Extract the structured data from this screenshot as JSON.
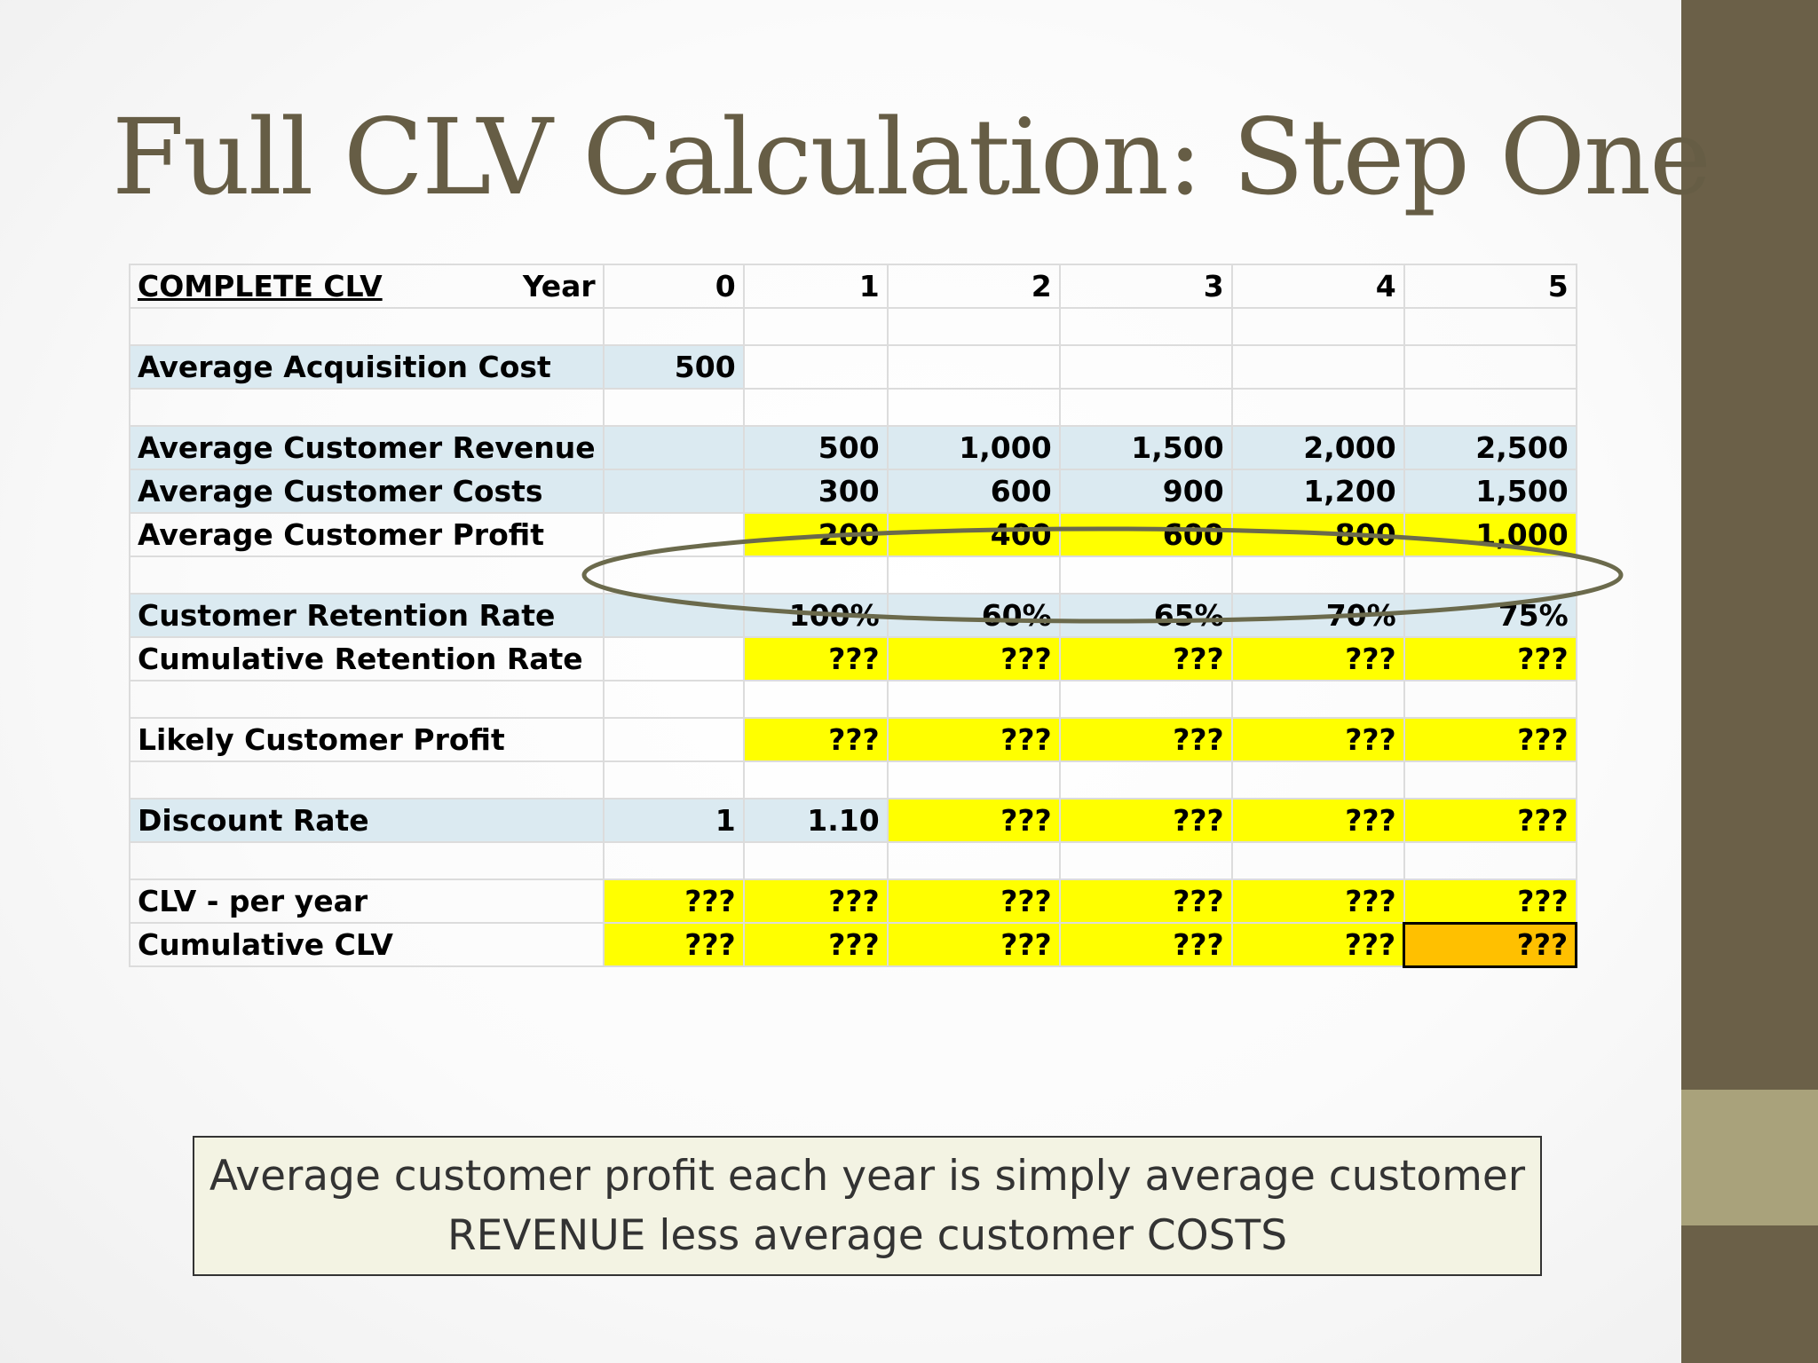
{
  "title": "Full CLV Calculation: Step One",
  "sheet": {
    "header_label": "COMPLETE CLV",
    "year_label": "Year",
    "years": [
      "0",
      "1",
      "2",
      "3",
      "4",
      "5"
    ],
    "rows": {
      "acq": {
        "label": "Average Acquisition Cost",
        "values": [
          "500",
          "",
          "",
          "",
          "",
          ""
        ]
      },
      "rev": {
        "label": "Average Customer Revenue",
        "values": [
          "",
          "500",
          "1,000",
          "1,500",
          "2,000",
          "2,500"
        ]
      },
      "cost": {
        "label": "Average Customer Costs",
        "values": [
          "",
          "300",
          "600",
          "900",
          "1,200",
          "1,500"
        ]
      },
      "profit": {
        "label": "Average Customer Profit",
        "values": [
          "",
          "200",
          "400",
          "600",
          "800",
          "1,000"
        ]
      },
      "ret": {
        "label": "Customer Retention Rate",
        "values": [
          "",
          "100%",
          "60%",
          "65%",
          "70%",
          "75%"
        ]
      },
      "cumret": {
        "label": "Cumulative Retention Rate",
        "values": [
          "",
          "???",
          "???",
          "???",
          "???",
          "???"
        ]
      },
      "likely": {
        "label": "Likely Customer Profit",
        "values": [
          "",
          "???",
          "???",
          "???",
          "???",
          "???"
        ]
      },
      "disc": {
        "label": "Discount Rate",
        "values": [
          "1",
          "1.10",
          "???",
          "???",
          "???",
          "???"
        ]
      },
      "clvyear": {
        "label": "CLV - per year",
        "values": [
          "???",
          "???",
          "???",
          "???",
          "???",
          "???"
        ]
      },
      "cumclv": {
        "label": "Cumulative CLV",
        "values": [
          "???",
          "???",
          "???",
          "???",
          "???",
          "???"
        ]
      }
    }
  },
  "note": {
    "line1": "Average customer profit each year is simply average customer",
    "line2": "REVENUE less average customer COSTS"
  },
  "colors": {
    "title": "#665d45",
    "sidebar": "#6b6048",
    "sidebar_accent": "#a9a27b",
    "row_highlight": "#dbeaf1",
    "cell_highlight": "#ffff00",
    "target_cell": "#ffc000"
  }
}
